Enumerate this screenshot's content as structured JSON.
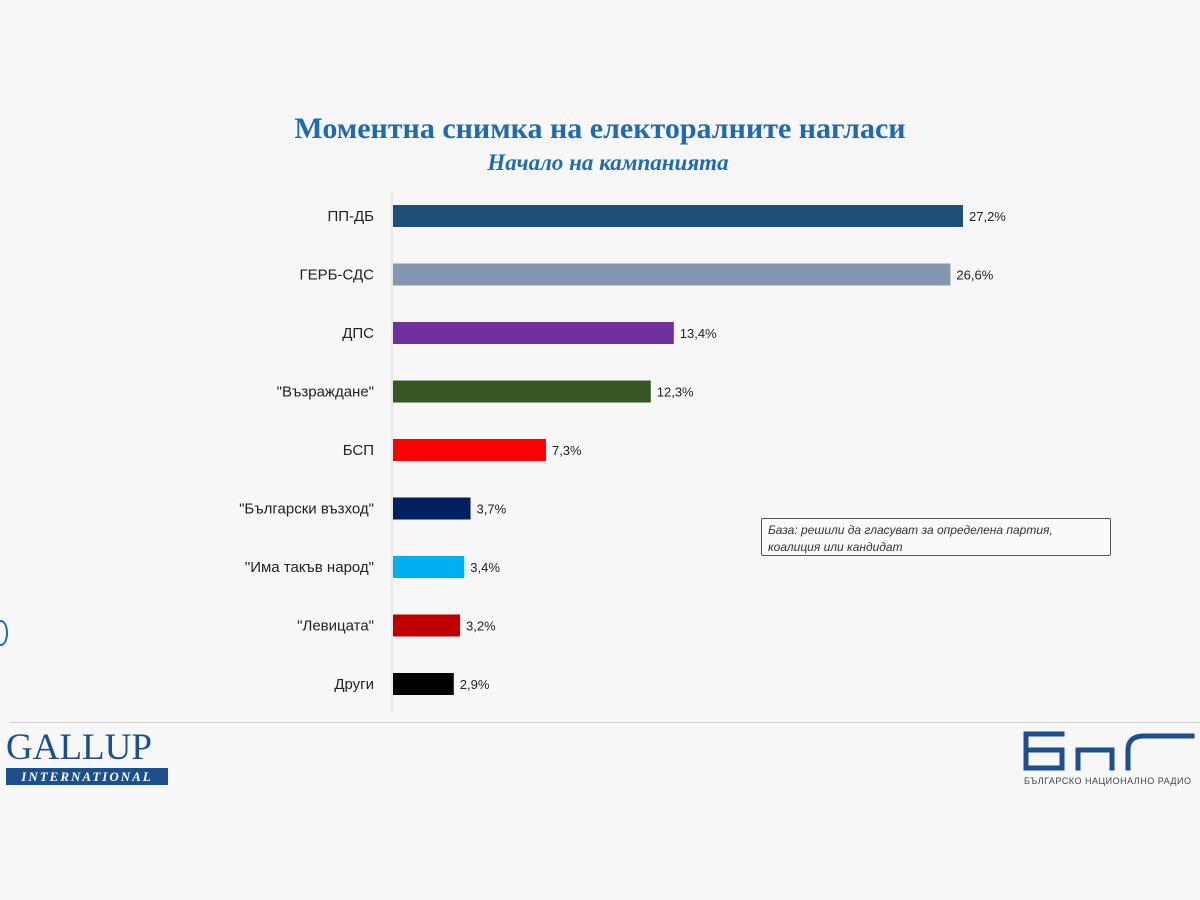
{
  "colors": {
    "title": "#1f6ab0",
    "bars": [
      "#1f4e79",
      "#8497b0",
      "#7030a0",
      "#375623",
      "#ff0000",
      "#002060",
      "#00b0f0",
      "#c00000",
      "#000000"
    ]
  },
  "note": {
    "text": "База: решили да гласуват за определена партия, коалиция или кандидат"
  },
  "logos": {
    "gallup_name": "GALLUP",
    "gallup_band": "INTERNATIONAL",
    "bnr_tagline": "БЪЛГАРСКО НАЦИОНАЛНО РАДИО"
  },
  "chart_data": {
    "type": "bar",
    "orientation": "horizontal",
    "title": "Моментна снимка на електоралните нагласи",
    "subtitle": "Начало на кампанията",
    "categories": [
      "ПП-ДБ",
      "ГЕРБ-СДС",
      "ДПС",
      "\"Възраждане\"",
      "БСП",
      "\"Български възход\"",
      "\"Има такъв народ\"",
      "\"Левицата\"",
      "Други"
    ],
    "values": [
      27.2,
      26.6,
      13.4,
      12.3,
      7.3,
      3.7,
      3.4,
      3.2,
      2.9
    ],
    "value_labels": [
      "27,2%",
      "26,6%",
      "13,4%",
      "12,3%",
      "7,3%",
      "3,7%",
      "3,4%",
      "3,2%",
      "2,9%"
    ],
    "xlim": [
      0,
      27.2
    ],
    "grid": false,
    "legend": false
  }
}
